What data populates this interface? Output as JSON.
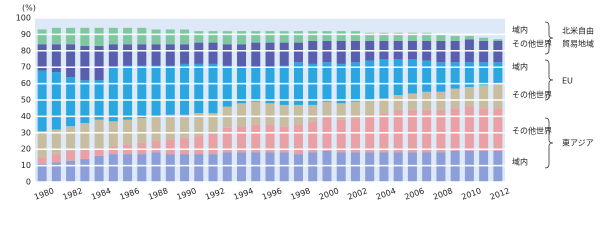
{
  "chart_data": {
    "type": "stacked_bar",
    "y_unit_label": "(%)",
    "categories": [
      "1980",
      null,
      "1982",
      null,
      "1984",
      null,
      "1986",
      null,
      "1988",
      null,
      "1990",
      null,
      "1992",
      null,
      "1994",
      null,
      "1996",
      null,
      "1998",
      null,
      "2000",
      null,
      "2002",
      null,
      "2004",
      null,
      "2006",
      null,
      "2008",
      null,
      "2010",
      null,
      "2012"
    ],
    "series": [
      {
        "name": "域内",
        "color": "#8c9fd8",
        "values": [
          11,
          12,
          13,
          14,
          16,
          17,
          17,
          17,
          18,
          17,
          17,
          17,
          17,
          18,
          18,
          18,
          18,
          18,
          17,
          18,
          19,
          18,
          18,
          18,
          18,
          18,
          18,
          18,
          18,
          19,
          19,
          19,
          19
        ]
      },
      {
        "name": "その他世界",
        "color": "#eaa0a4",
        "values": [
          4,
          5,
          6,
          6,
          5,
          5,
          6,
          7,
          7,
          9,
          10,
          11,
          13,
          15,
          16,
          17,
          17,
          16,
          18,
          19,
          21,
          20,
          21,
          22,
          24,
          26,
          26,
          26,
          26,
          26,
          27,
          26,
          26
        ]
      },
      {
        "name": "その他世界",
        "color": "#c9bda0",
        "values": [
          16,
          15,
          15,
          16,
          17,
          15,
          15,
          15,
          15,
          15,
          14,
          14,
          12,
          13,
          14,
          14,
          13,
          13,
          12,
          10,
          9,
          10,
          10,
          10,
          9,
          9,
          10,
          11,
          11,
          12,
          12,
          14,
          15
        ]
      },
      {
        "name": "域内",
        "color": "#2aa7e0",
        "values": [
          37,
          35,
          30,
          26,
          24,
          33,
          33,
          32,
          31,
          30,
          31,
          30,
          30,
          25,
          22,
          21,
          22,
          24,
          26,
          25,
          24,
          24,
          24,
          24,
          24,
          22,
          21,
          19,
          18,
          16,
          15,
          14,
          13
        ]
      },
      {
        "name": "その他世界",
        "color": "#5a5fad",
        "values": [
          16,
          17,
          20,
          21,
          21,
          14,
          13,
          13,
          13,
          13,
          12,
          13,
          13,
          13,
          14,
          15,
          15,
          14,
          12,
          14,
          13,
          14,
          13,
          12,
          11,
          11,
          11,
          12,
          13,
          13,
          14,
          13,
          13
        ]
      },
      {
        "name": "域内",
        "color": "#7fc79f",
        "values": [
          9,
          10,
          10,
          11,
          11,
          10,
          10,
          10,
          9,
          9,
          9,
          7,
          7,
          8,
          8,
          7,
          7,
          7,
          7,
          6,
          6,
          6,
          6,
          5,
          5,
          5,
          5,
          5,
          4,
          3,
          2,
          2,
          1
        ]
      }
    ],
    "groups": [
      {
        "lines": [
          "東アジア"
        ]
      },
      {
        "lines": [
          "EU"
        ]
      },
      {
        "lines": [
          "北米自由",
          "貿易地域"
        ]
      }
    ],
    "ylim": [
      0,
      100
    ],
    "yticks": [
      0,
      10,
      20,
      30,
      40,
      50,
      60,
      70,
      80,
      90,
      100
    ],
    "grid": true
  }
}
